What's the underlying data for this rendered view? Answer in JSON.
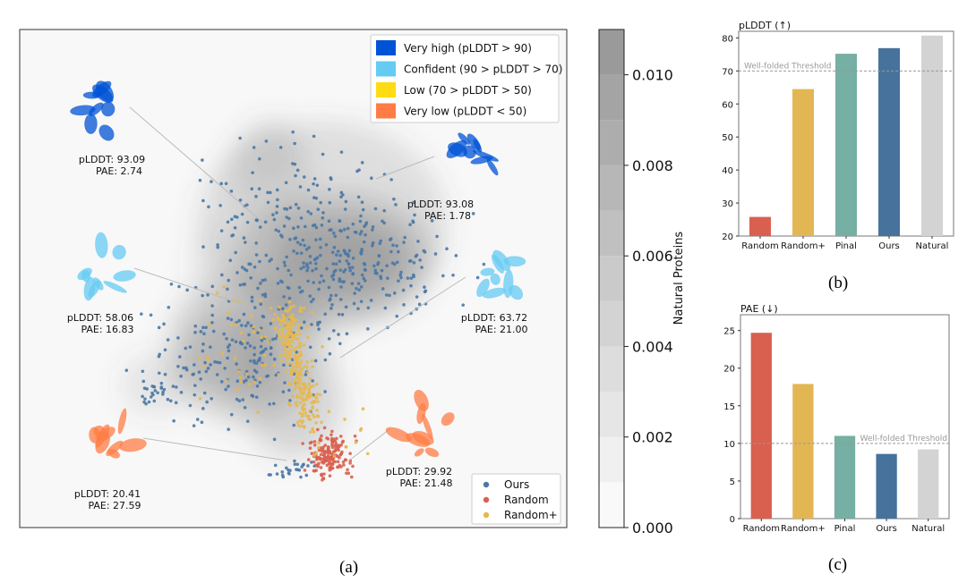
{
  "panel_a": {
    "caption": "(a)",
    "legend_plddt": [
      {
        "label": "Very high (pLDDT > 90)",
        "color": "#0053d6"
      },
      {
        "label": "Confident (90 > pLDDT > 70)",
        "color": "#65cbf3"
      },
      {
        "label": "Low (70 > pLDDT > 50)",
        "color": "#ffdb13"
      },
      {
        "label": "Very low (pLDDT < 50)",
        "color": "#ff7d45"
      }
    ],
    "legend_series": [
      {
        "label": "Ours",
        "color": "#4a78a6"
      },
      {
        "label": "Random",
        "color": "#d9604f"
      },
      {
        "label": "Random+",
        "color": "#e6b84f"
      }
    ],
    "annotations": [
      {
        "plddt": "pLDDT: 93.09",
        "pae": "PAE: 2.74",
        "structure_color": "#0053d6"
      },
      {
        "plddt": "pLDDT: 93.08",
        "pae": "PAE: 1.78",
        "structure_color": "#0053d6"
      },
      {
        "plddt": "pLDDT: 58.06",
        "pae": "PAE: 16.83",
        "structure_color": "#65cbf3"
      },
      {
        "plddt": "pLDDT: 63.72",
        "pae": "PAE: 21.00",
        "structure_color": "#65cbf3"
      },
      {
        "plddt": "pLDDT: 20.41",
        "pae": "PAE: 27.59",
        "structure_color": "#ff7d45"
      },
      {
        "plddt": "pLDDT: 29.92",
        "pae": "PAE: 21.48",
        "structure_color": "#ff7d45"
      }
    ],
    "colorbar": {
      "label": "Natural Proteins",
      "range": [
        0.0,
        0.011
      ],
      "ticks": [
        "0.000",
        "0.002",
        "0.004",
        "0.006",
        "0.008",
        "0.010"
      ],
      "tick_values": [
        0,
        0.002,
        0.004,
        0.006,
        0.008,
        0.01
      ],
      "levels": 11
    }
  },
  "chart_data": [
    {
      "type": "bar",
      "caption": "(b)",
      "title": "pLDDT (↑)",
      "categories": [
        "Random",
        "Random+",
        "Pinal",
        "Ours",
        "Natural"
      ],
      "values": [
        25.8,
        64.5,
        75.2,
        76.9,
        80.7
      ],
      "colors": [
        "#d9604f",
        "#e3b654",
        "#76afa3",
        "#46729c",
        "#d3d3d3"
      ],
      "ylim": [
        20,
        82
      ],
      "yticks": [
        20,
        30,
        40,
        50,
        60,
        70,
        80
      ],
      "threshold": {
        "value": 70,
        "label": "Well-folded Threshold"
      }
    },
    {
      "type": "bar",
      "caption": "(c)",
      "title": "PAE (↓)",
      "categories": [
        "Random",
        "Random+",
        "Pinal",
        "Ours",
        "Natural"
      ],
      "values": [
        24.7,
        17.9,
        11.0,
        8.6,
        9.2
      ],
      "colors": [
        "#d9604f",
        "#e3b654",
        "#76afa3",
        "#46729c",
        "#d3d3d3"
      ],
      "ylim": [
        0,
        27.1
      ],
      "yticks": [
        0,
        5,
        10,
        15,
        20,
        25
      ],
      "threshold": {
        "value": 10,
        "label": "Well-folded Threshold"
      }
    }
  ]
}
